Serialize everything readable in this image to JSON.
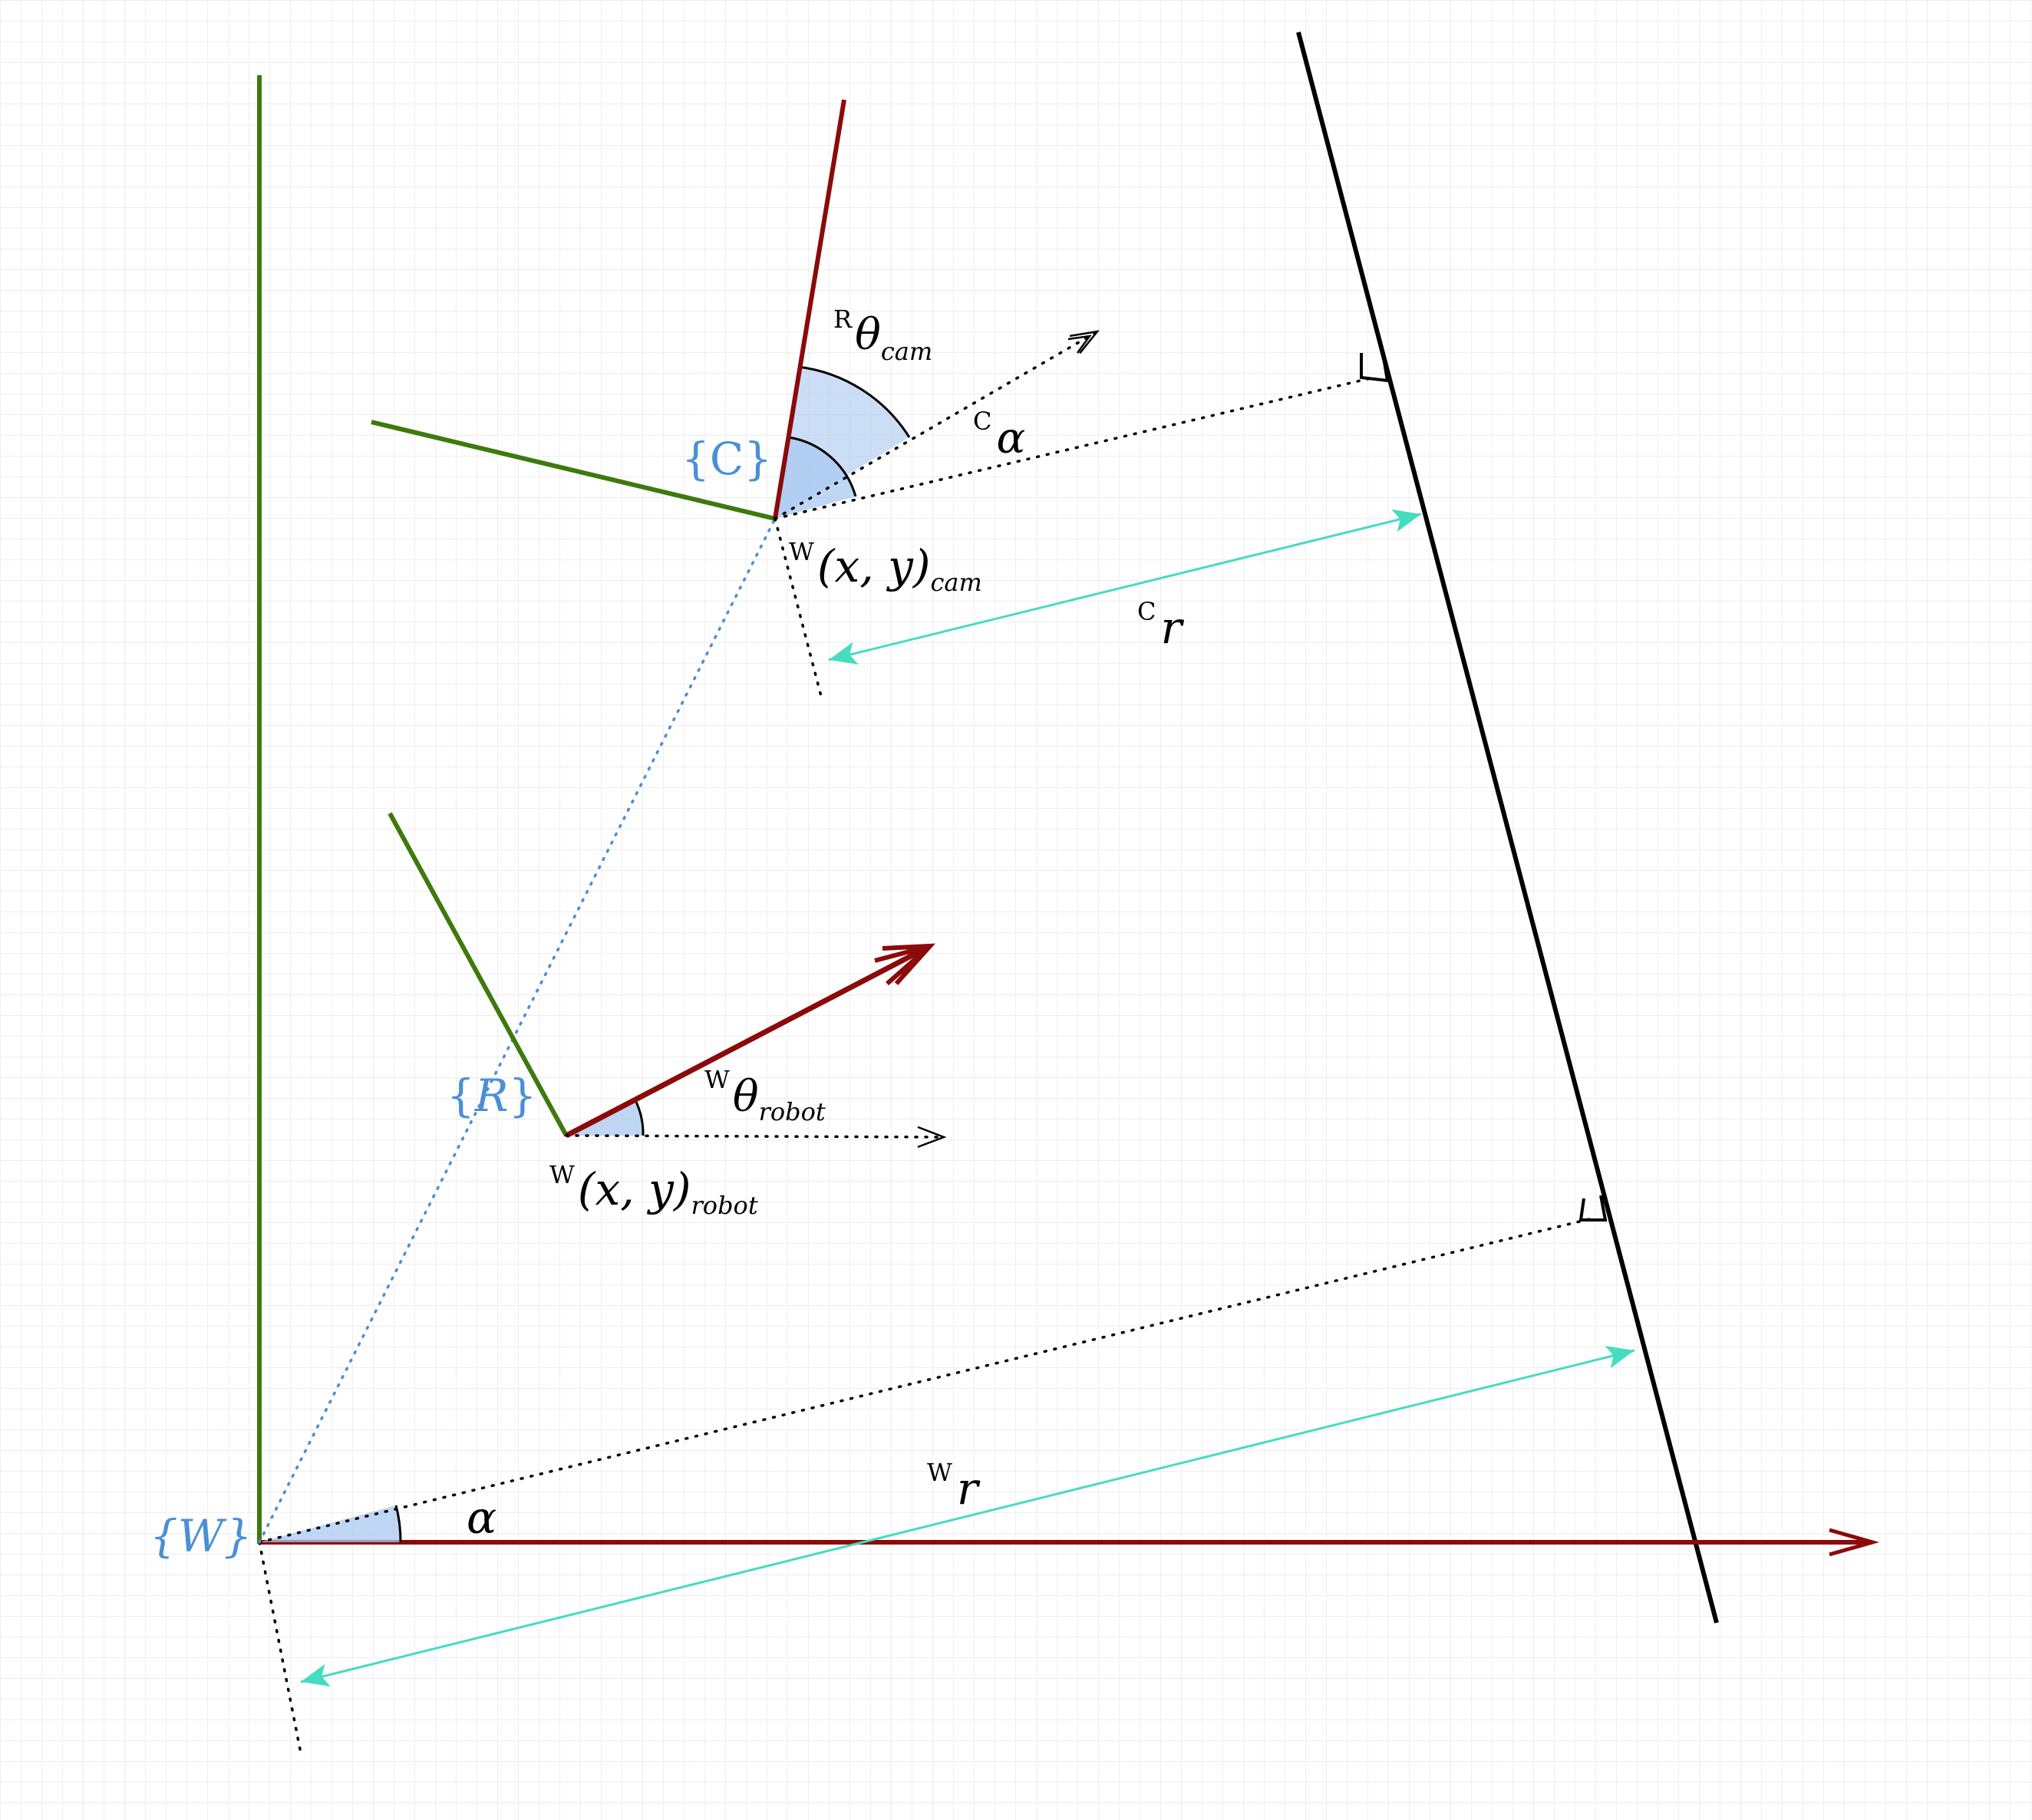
{
  "frames": {
    "world": "{W}",
    "robot_open": "{",
    "robot_letter": "R",
    "robot_close": "}",
    "camera": "{C}"
  },
  "labels": {
    "theta_cam_sup": "R",
    "theta_cam_main": "θ",
    "theta_cam_sub": "cam",
    "alpha_cam_sup": "C",
    "alpha_cam_main": "α",
    "pos_cam_sup": "W",
    "pos_cam_main": "(x, y)",
    "pos_cam_sub": "cam",
    "r_cam_sup": "C",
    "r_cam_main": "r",
    "theta_robot_sup": "W",
    "theta_robot_main": "θ",
    "theta_robot_sub": "robot",
    "pos_robot_sup": "W",
    "pos_robot_main": "(x, y)",
    "pos_robot_sub": "robot",
    "r_world_sup": "W",
    "r_world_main": "r",
    "alpha_world": "α"
  },
  "colors": {
    "x_axis": "#8b0a0a",
    "y_axis": "#3d7a0c",
    "line": "#000000",
    "distance_arrow": "#45dcc0",
    "frame_label": "#4a8fd6",
    "angle_fill": "#a9c8f0",
    "grid": "#e2e2e2",
    "ray_dotted_blue": "#4a8fd6"
  },
  "grid": {
    "visible": true
  }
}
